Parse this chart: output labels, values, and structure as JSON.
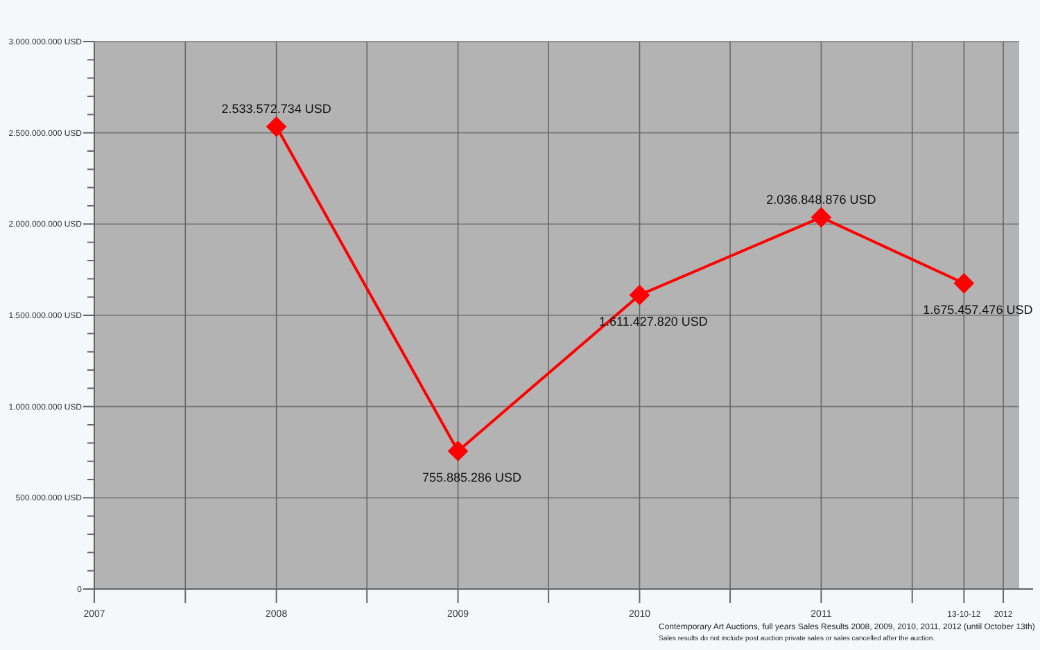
{
  "chart_data": {
    "type": "line",
    "x": [
      "2008-12-31",
      "2009-12-31",
      "2010-12-31",
      "2011-12-31",
      "2012-10-13"
    ],
    "series": [
      {
        "color": "#ff0000",
        "values": [
          2533572734,
          755885286,
          1611427820,
          2036848876,
          1675457476
        ],
        "value_labels": [
          "2.533.572.734 USD",
          "755.885.286 USD",
          "1.611.427.820 USD",
          "2.036.848.876 USD",
          "1.675.457.476 USD"
        ]
      }
    ],
    "xlim": [
      "2007-12-31",
      "2013-02-01"
    ],
    "xticks": [
      {
        "value": "2007-12-31",
        "label": "2007"
      },
      {
        "value": "2008-07-01",
        "label": null
      },
      {
        "value": "2008-12-31",
        "label": "2008"
      },
      {
        "value": "2009-07-01",
        "label": null
      },
      {
        "value": "2009-12-31",
        "label": "2009"
      },
      {
        "value": "2010-07-01",
        "label": null
      },
      {
        "value": "2010-12-31",
        "label": "2010"
      },
      {
        "value": "2011-07-01",
        "label": null
      },
      {
        "value": "2011-12-31",
        "label": "2011"
      },
      {
        "value": "2012-07-01",
        "label": null
      },
      {
        "value": "2012-10-13",
        "label": "13-10-12"
      },
      {
        "value": "2012-12-31",
        "label": "2012"
      }
    ],
    "ylim": [
      0,
      3000000000
    ],
    "yticks": [
      {
        "value": 0,
        "label": "0"
      },
      {
        "value": 100000000,
        "label": null
      },
      {
        "value": 200000000,
        "label": null
      },
      {
        "value": 300000000,
        "label": null
      },
      {
        "value": 400000000,
        "label": null
      },
      {
        "value": 500000000,
        "label": "500.000.000 USD"
      },
      {
        "value": 600000000,
        "label": null
      },
      {
        "value": 700000000,
        "label": null
      },
      {
        "value": 800000000,
        "label": null
      },
      {
        "value": 900000000,
        "label": null
      },
      {
        "value": 1000000000,
        "label": "1.000.000.000 USD"
      },
      {
        "value": 1100000000,
        "label": null
      },
      {
        "value": 1200000000,
        "label": null
      },
      {
        "value": 1300000000,
        "label": null
      },
      {
        "value": 1400000000,
        "label": null
      },
      {
        "value": 1500000000,
        "label": "1.500.000.000 USD"
      },
      {
        "value": 1600000000,
        "label": null
      },
      {
        "value": 1700000000,
        "label": null
      },
      {
        "value": 1800000000,
        "label": null
      },
      {
        "value": 1900000000,
        "label": null
      },
      {
        "value": 2000000000,
        "label": "2.000.000.000 USD"
      },
      {
        "value": 2100000000,
        "label": null
      },
      {
        "value": 2200000000,
        "label": null
      },
      {
        "value": 2300000000,
        "label": null
      },
      {
        "value": 2400000000,
        "label": null
      },
      {
        "value": 2500000000,
        "label": "2.500.000.000 USD"
      },
      {
        "value": 2600000000,
        "label": null
      },
      {
        "value": 2700000000,
        "label": null
      },
      {
        "value": 2800000000,
        "label": null
      },
      {
        "value": 2900000000,
        "label": null
      },
      {
        "value": 3000000000,
        "label": "3.000.000.000 USD"
      }
    ],
    "grid": true,
    "marker": "diamond",
    "line_style": "solid",
    "annotations": [
      "Contemporary Art Auctions, full years Sales Results 2008, 2009, 2010, 2011, 2012 (until October 13th)",
      "Sales results do not include post auction private sales or sales cancelled after the auction."
    ]
  }
}
